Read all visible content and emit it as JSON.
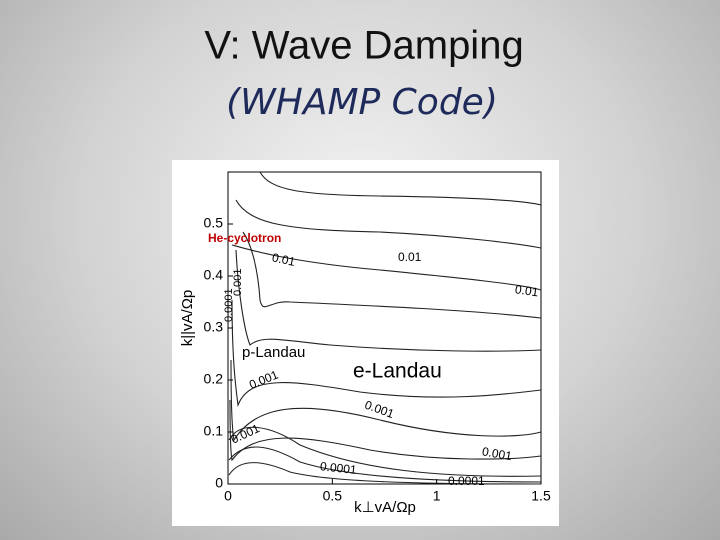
{
  "chart_data": {
    "type": "contour",
    "title": "V: Wave Damping",
    "subtitle": "(WHAMP Code)",
    "x_label": "k⊥vA/Ωp",
    "y_label": "k||vA/Ωp",
    "xlim": [
      0,
      1.5
    ],
    "ylim": [
      0,
      0.6
    ],
    "xticks": [
      0,
      0.5,
      1,
      1.5
    ],
    "yticks": [
      0,
      0.1,
      0.2,
      0.3,
      0.4,
      0.5
    ],
    "annotations": [
      "He-cyclotron",
      "0.01",
      "0.01",
      "0.01",
      "0.001",
      "0.0001",
      "p-Landau",
      "e-Landau",
      "0.001",
      "0.001",
      "0.001",
      "0.001",
      "0.0001",
      "0.0001"
    ]
  }
}
